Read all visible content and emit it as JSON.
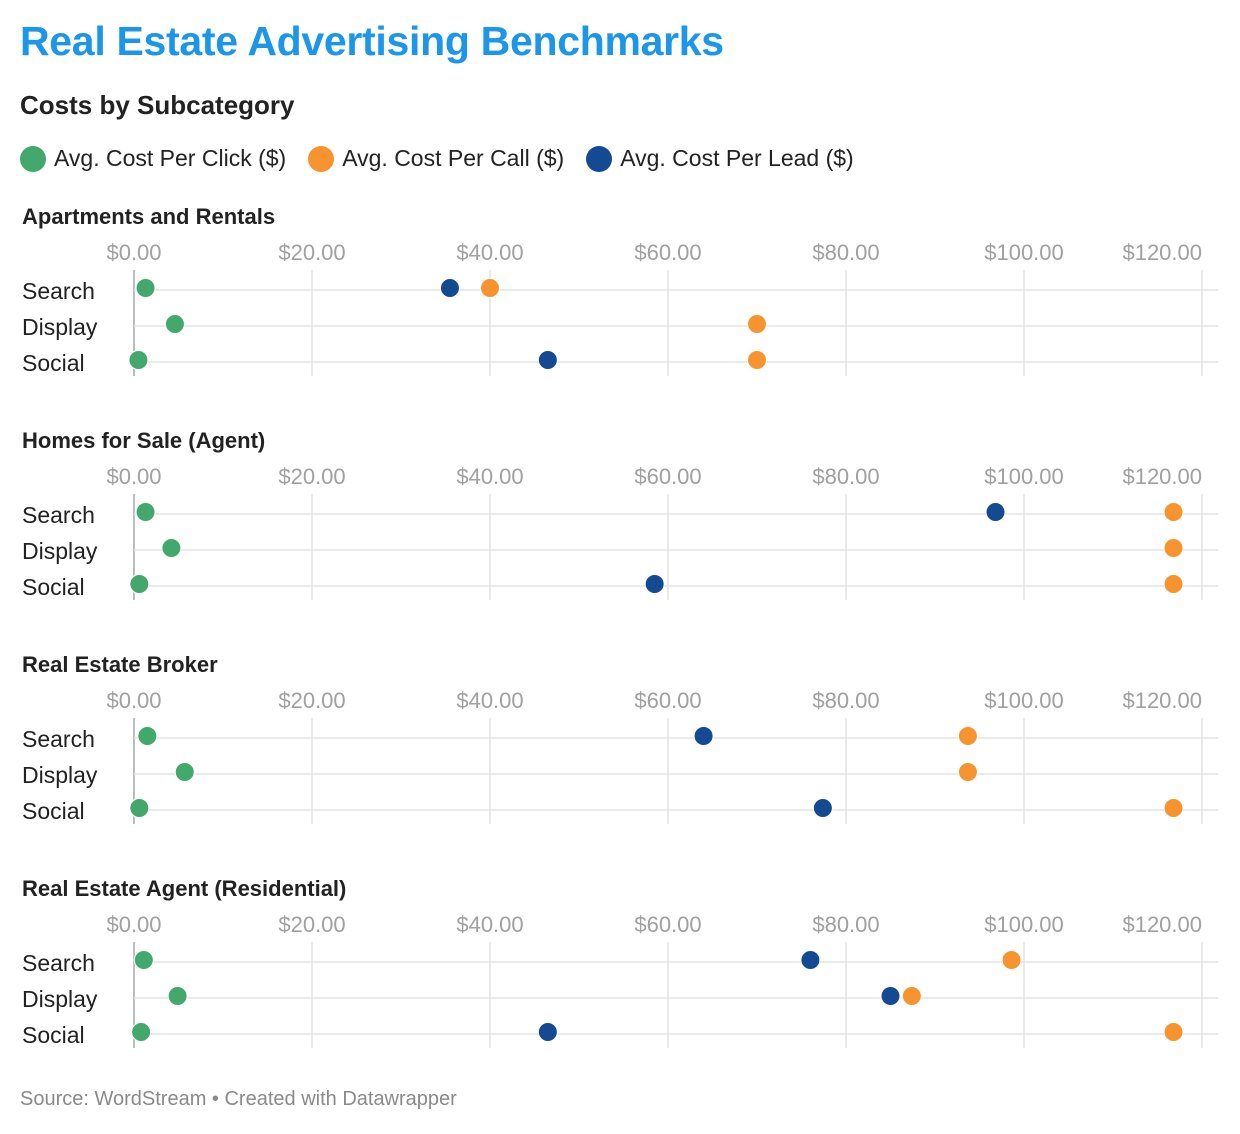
{
  "title": "Real Estate Advertising Benchmarks",
  "subtitle": "Costs by Subcategory",
  "source": "Source: WordStream • Created with Datawrapper",
  "colors": {
    "title": "#1c96e8",
    "click": "#43a86b",
    "call": "#f7942f",
    "lead": "#144a92"
  },
  "chart_data": {
    "type": "scatter",
    "series": [
      {
        "key": "click",
        "name": "Avg. Cost Per Click ($)",
        "color": "#43a86b"
      },
      {
        "key": "call",
        "name": "Avg. Cost Per Call ($)",
        "color": "#f7942f"
      },
      {
        "key": "lead",
        "name": "Avg. Cost Per Lead ($)",
        "color": "#144a92"
      }
    ],
    "xlim": [
      0,
      120
    ],
    "ticks": [
      "$0.00",
      "$20.00",
      "$40.00",
      "$60.00",
      "$80.00",
      "$100.00",
      "$120.00"
    ],
    "tick_values": [
      0,
      20,
      40,
      60,
      80,
      100,
      120
    ],
    "grid": true,
    "legend": "top-left",
    "panels": [
      {
        "title": "Apartments and Rentals",
        "rows": [
          {
            "label": "Search",
            "click": 1.3,
            "call": 40.0,
            "lead": 35.5
          },
          {
            "label": "Display",
            "click": 4.6,
            "call": 70.0,
            "lead": 70.0
          },
          {
            "label": "Social",
            "click": 0.5,
            "call": 70.0,
            "lead": 46.5
          }
        ]
      },
      {
        "title": "Homes for Sale (Agent)",
        "rows": [
          {
            "label": "Search",
            "click": 1.3,
            "call": 116.8,
            "lead": 96.8
          },
          {
            "label": "Display",
            "click": 4.2,
            "call": 116.8,
            "lead": 116.8
          },
          {
            "label": "Social",
            "click": 0.6,
            "call": 116.8,
            "lead": 58.5
          }
        ]
      },
      {
        "title": "Real Estate Broker",
        "rows": [
          {
            "label": "Search",
            "click": 1.5,
            "call": 93.7,
            "lead": 64.0
          },
          {
            "label": "Display",
            "click": 5.7,
            "call": 93.7,
            "lead": 93.7
          },
          {
            "label": "Social",
            "click": 0.6,
            "call": 116.8,
            "lead": 77.4
          }
        ]
      },
      {
        "title": "Real Estate Agent (Residential)",
        "rows": [
          {
            "label": "Search",
            "click": 1.1,
            "call": 98.6,
            "lead": 76.0
          },
          {
            "label": "Display",
            "click": 4.9,
            "call": 87.4,
            "lead": 85.0
          },
          {
            "label": "Social",
            "click": 0.8,
            "call": 116.8,
            "lead": 46.5
          }
        ]
      }
    ]
  }
}
